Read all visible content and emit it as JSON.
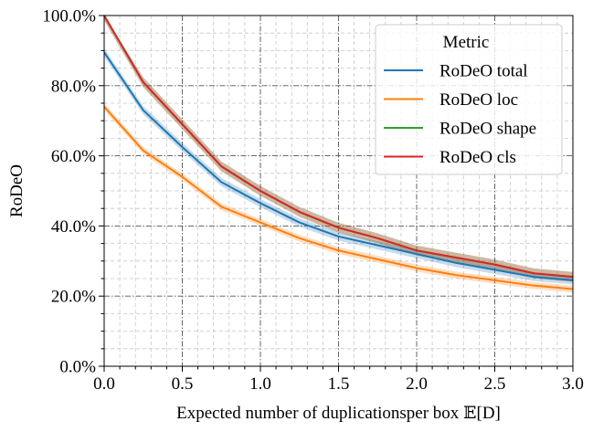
{
  "chart_data": {
    "type": "line",
    "title": "",
    "xlabel": "Expected number of duplicationsper box 𝔼[D]",
    "ylabel": "RoDeO",
    "xlim": [
      0.0,
      3.0
    ],
    "ylim": [
      0.0,
      1.0
    ],
    "x_ticks": [
      "0.0",
      "0.5",
      "1.0",
      "1.5",
      "2.0",
      "2.5",
      "3.0"
    ],
    "y_ticks": [
      "0.0%",
      "20.0%",
      "40.0%",
      "60.0%",
      "80.0%",
      "100.0%"
    ],
    "grid": true,
    "legend": {
      "title": "Metric",
      "placement": "top-right"
    },
    "x": [
      0.0,
      0.25,
      0.5,
      0.75,
      1.0,
      1.25,
      1.5,
      1.75,
      2.0,
      2.25,
      2.5,
      2.75,
      3.0
    ],
    "series": [
      {
        "name": "RoDeO total",
        "color": "#1f77b4",
        "values": [
          0.895,
          0.73,
          0.625,
          0.525,
          0.465,
          0.41,
          0.37,
          0.345,
          0.32,
          0.295,
          0.275,
          0.255,
          0.245
        ],
        "band": 0.012
      },
      {
        "name": "RoDeO loc",
        "color": "#ff7f0e",
        "values": [
          0.74,
          0.615,
          0.54,
          0.455,
          0.41,
          0.365,
          0.33,
          0.305,
          0.28,
          0.26,
          0.245,
          0.23,
          0.22
        ],
        "band": 0.01
      },
      {
        "name": "RoDeO shape",
        "color": "#2ca02c",
        "values": [
          1.0,
          0.81,
          0.69,
          0.57,
          0.5,
          0.44,
          0.395,
          0.365,
          0.33,
          0.31,
          0.29,
          0.265,
          0.255
        ],
        "band": 0.014
      },
      {
        "name": "RoDeO cls",
        "color": "#d62728",
        "values": [
          1.0,
          0.81,
          0.69,
          0.57,
          0.5,
          0.44,
          0.395,
          0.365,
          0.33,
          0.31,
          0.29,
          0.265,
          0.255
        ],
        "band": 0.014
      }
    ]
  }
}
